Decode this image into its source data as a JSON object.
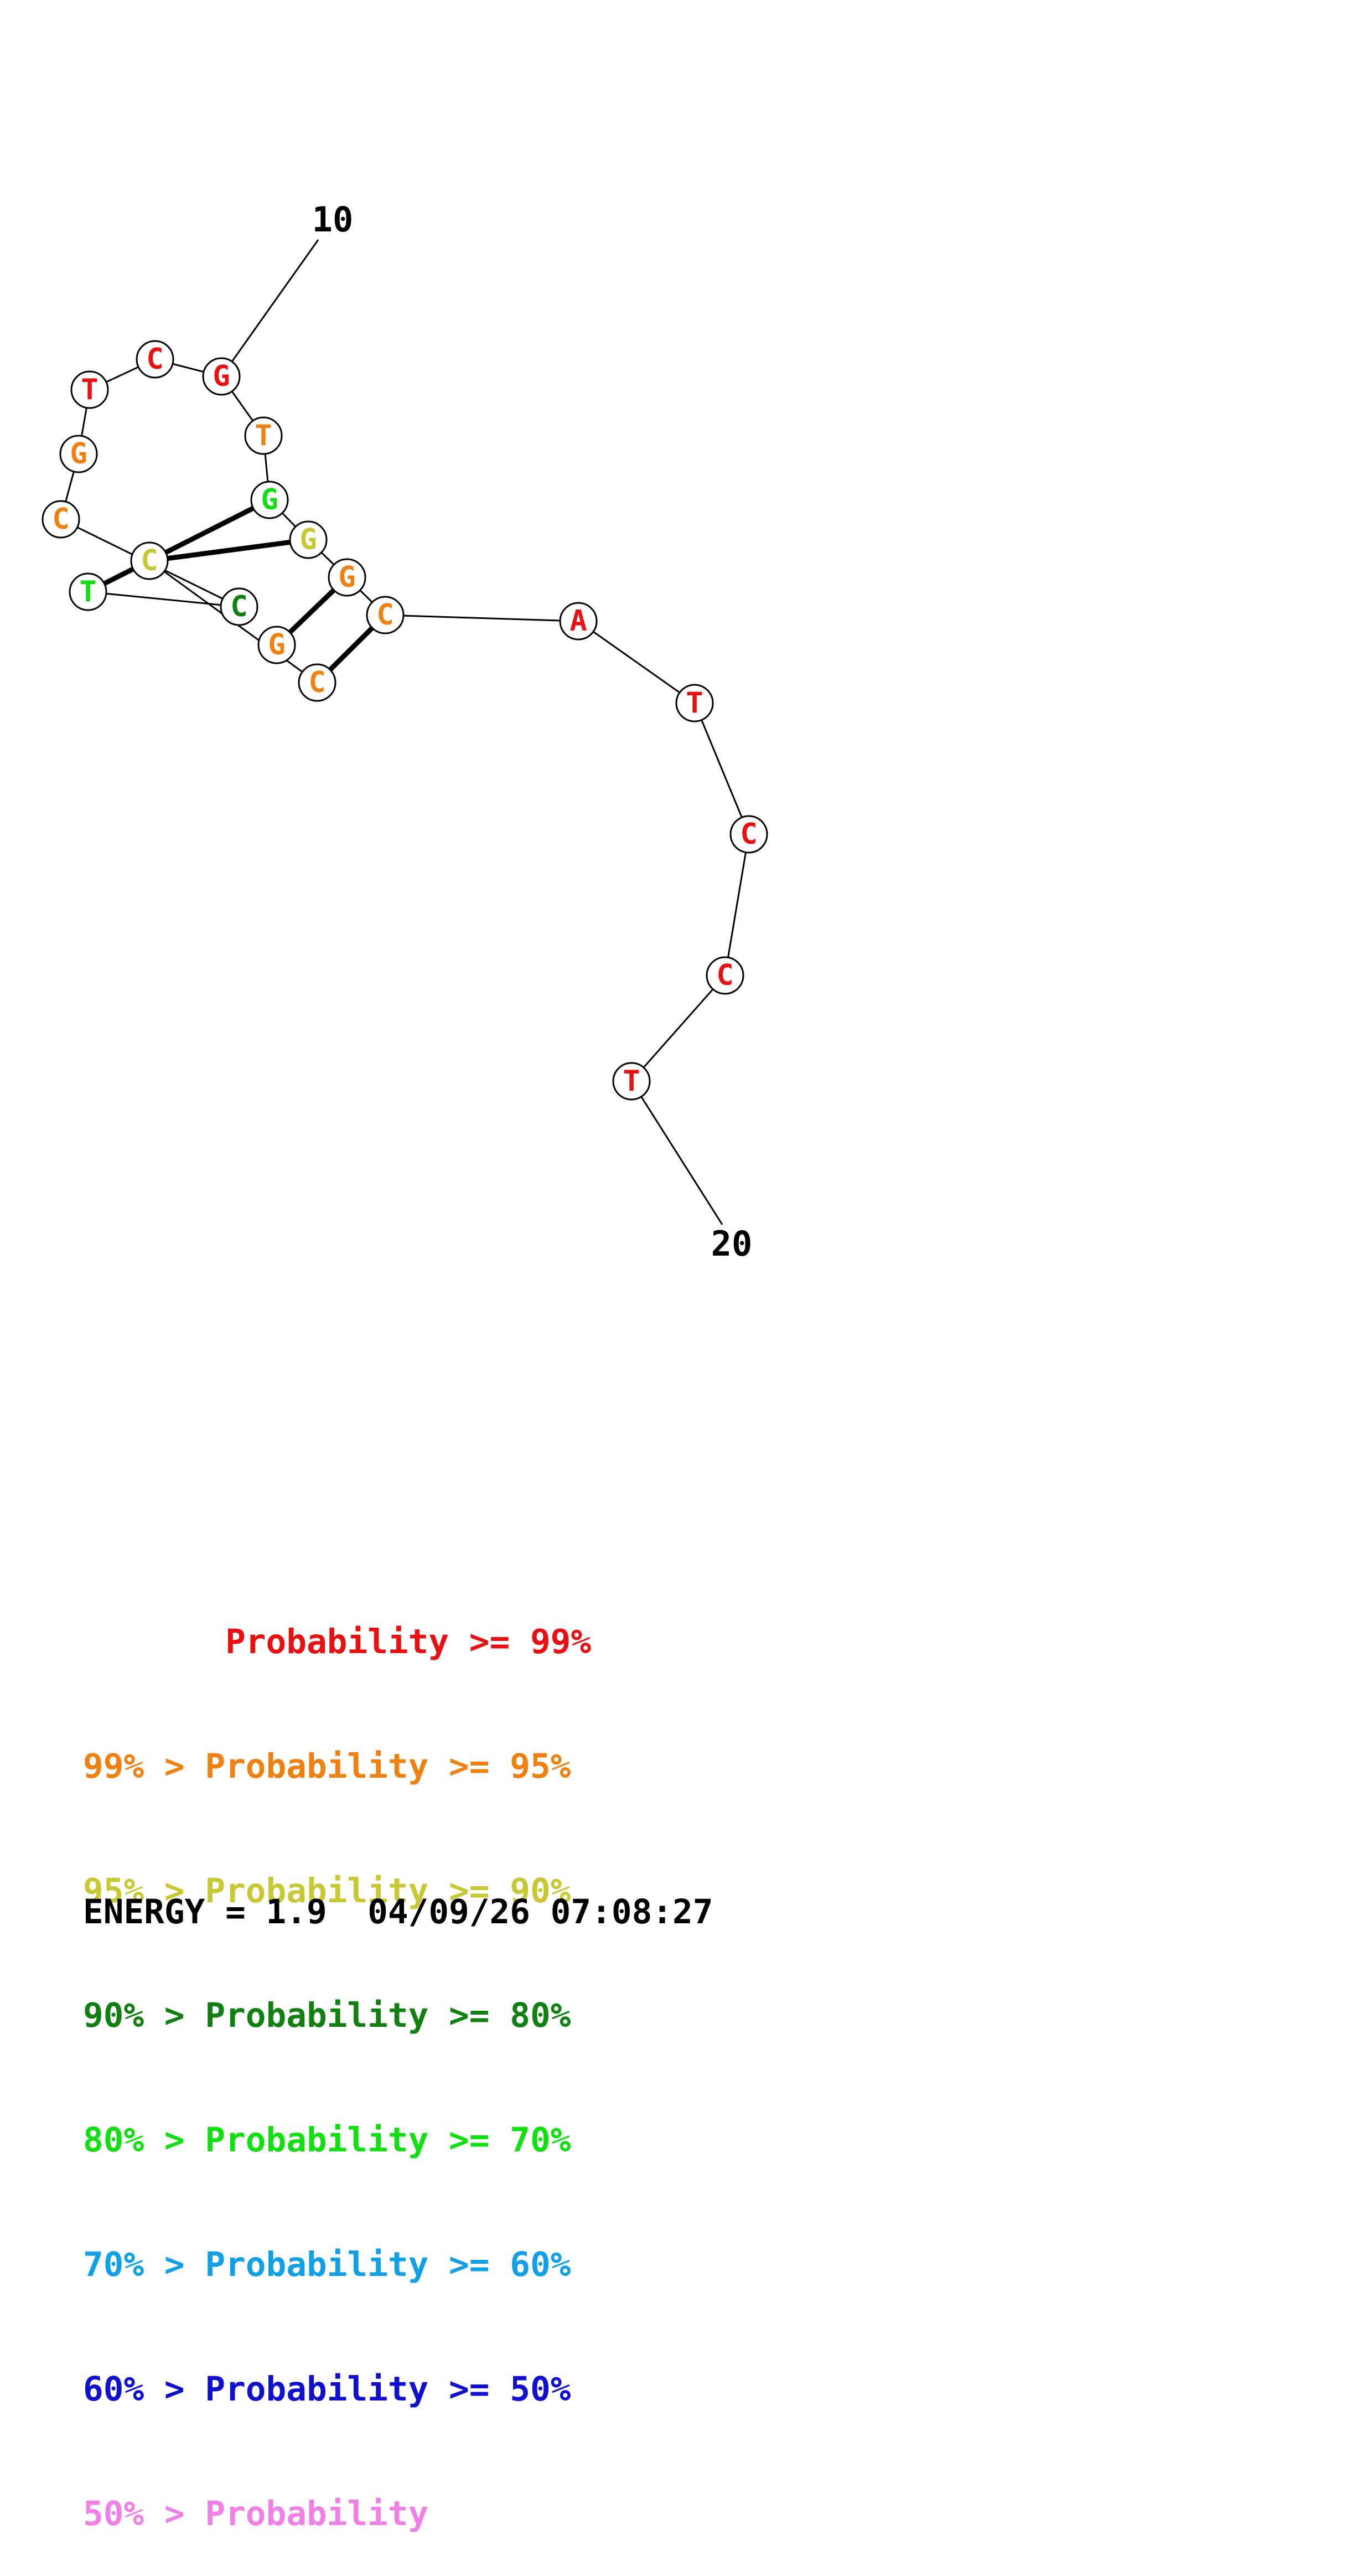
{
  "diagram": {
    "start_label": "10",
    "end_label": "20",
    "bases": [
      {
        "letter": "G",
        "color": "#e81010"
      },
      {
        "letter": "T",
        "color": "#f08010"
      },
      {
        "letter": "G",
        "color": "#10e010"
      },
      {
        "letter": "G",
        "color": "#c8c832"
      },
      {
        "letter": "G",
        "color": "#f08010"
      },
      {
        "letter": "C",
        "color": "#f08010"
      },
      {
        "letter": "A",
        "color": "#e81010"
      },
      {
        "letter": "T",
        "color": "#e81010"
      },
      {
        "letter": "C",
        "color": "#e81010"
      },
      {
        "letter": "C",
        "color": "#e81010"
      },
      {
        "letter": "T",
        "color": "#e81010"
      },
      {
        "letter": "G",
        "color": "#f08010"
      },
      {
        "letter": "C",
        "color": "#f08010"
      },
      {
        "letter": "C",
        "color": "#c8c832"
      },
      {
        "letter": "T",
        "color": "#10e010"
      },
      {
        "letter": "C",
        "color": "#108010"
      },
      {
        "letter": "C",
        "color": "#f08010"
      },
      {
        "letter": "G",
        "color": "#f08010"
      },
      {
        "letter": "T",
        "color": "#e81010"
      },
      {
        "letter": "C",
        "color": "#e81010"
      }
    ]
  },
  "legend": [
    {
      "text": "       Probability >= 99%",
      "color": "#e81010"
    },
    {
      "text": "99% > Probability >= 95%",
      "color": "#f08010"
    },
    {
      "text": "95% > Probability >= 90%",
      "color": "#c8c832"
    },
    {
      "text": "90% > Probability >= 80%",
      "color": "#108010"
    },
    {
      "text": "80% > Probability >= 70%",
      "color": "#10e010"
    },
    {
      "text": "70% > Probability >= 60%",
      "color": "#10a0e8"
    },
    {
      "text": "60% > Probability >= 50%",
      "color": "#1010d0"
    },
    {
      "text": "50% > Probability",
      "color": "#f080e8"
    }
  ],
  "footer": {
    "energy_text": "ENERGY = 1.9  04/09/26 07:08:27"
  }
}
